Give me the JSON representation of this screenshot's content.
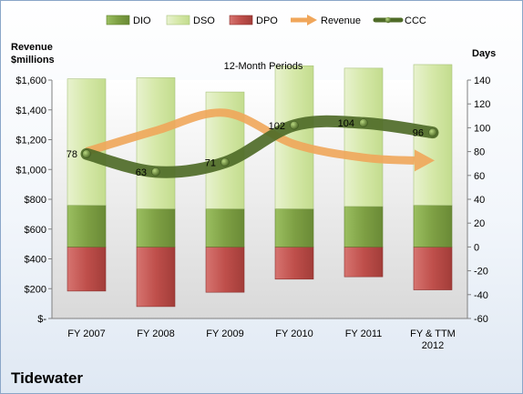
{
  "chart_data": {
    "type": "bar",
    "title": "12-Month Periods",
    "company": "Tidewater",
    "left_axis_label": [
      "Revenue",
      "$millions"
    ],
    "right_axis_label": "Days",
    "categories": [
      [
        "FY 2007"
      ],
      [
        "FY 2008"
      ],
      [
        "FY 2009"
      ],
      [
        "FY 2010"
      ],
      [
        "FY 2011"
      ],
      [
        "FY & TTM",
        "2012"
      ]
    ],
    "left_axis": {
      "min": 0,
      "max": 1600,
      "step": 200,
      "tick_labels": [
        "$-",
        "$200",
        "$400",
        "$600",
        "$800",
        "$1,000",
        "$1,200",
        "$1,400",
        "$1,600"
      ]
    },
    "right_axis": {
      "min": -60,
      "max": 140,
      "step": 20,
      "tick_labels": [
        "-60",
        "-40",
        "-20",
        "0",
        "20",
        "40",
        "60",
        "80",
        "100",
        "120",
        "140"
      ]
    },
    "legend_position": "top",
    "series": [
      {
        "name": "DIO",
        "kind": "stacked-bar",
        "axis": "right",
        "color": "#7da04a",
        "values": [
          35,
          32,
          32,
          32,
          34,
          35
        ]
      },
      {
        "name": "DSO",
        "kind": "stacked-bar",
        "axis": "right",
        "color": "#d7e8b0",
        "values": [
          106,
          110,
          98,
          120,
          116,
          118
        ]
      },
      {
        "name": "DPO",
        "kind": "negative-bar",
        "axis": "right",
        "color": "#c0504d",
        "values": [
          -37,
          -50,
          -38,
          -27,
          -25,
          -36
        ]
      },
      {
        "name": "Revenue",
        "kind": "arrow-line",
        "axis": "left",
        "color": "#f0a65a",
        "values": [
          1120,
          1260,
          1380,
          1170,
          1080,
          1060
        ]
      },
      {
        "name": "CCC",
        "kind": "line",
        "axis": "right",
        "color": "#4f6b28",
        "values": [
          78,
          63,
          71,
          102,
          104,
          96
        ]
      }
    ],
    "data_labels": [
      "78",
      "63",
      "71",
      "102",
      "104",
      "96"
    ],
    "grid": false
  }
}
